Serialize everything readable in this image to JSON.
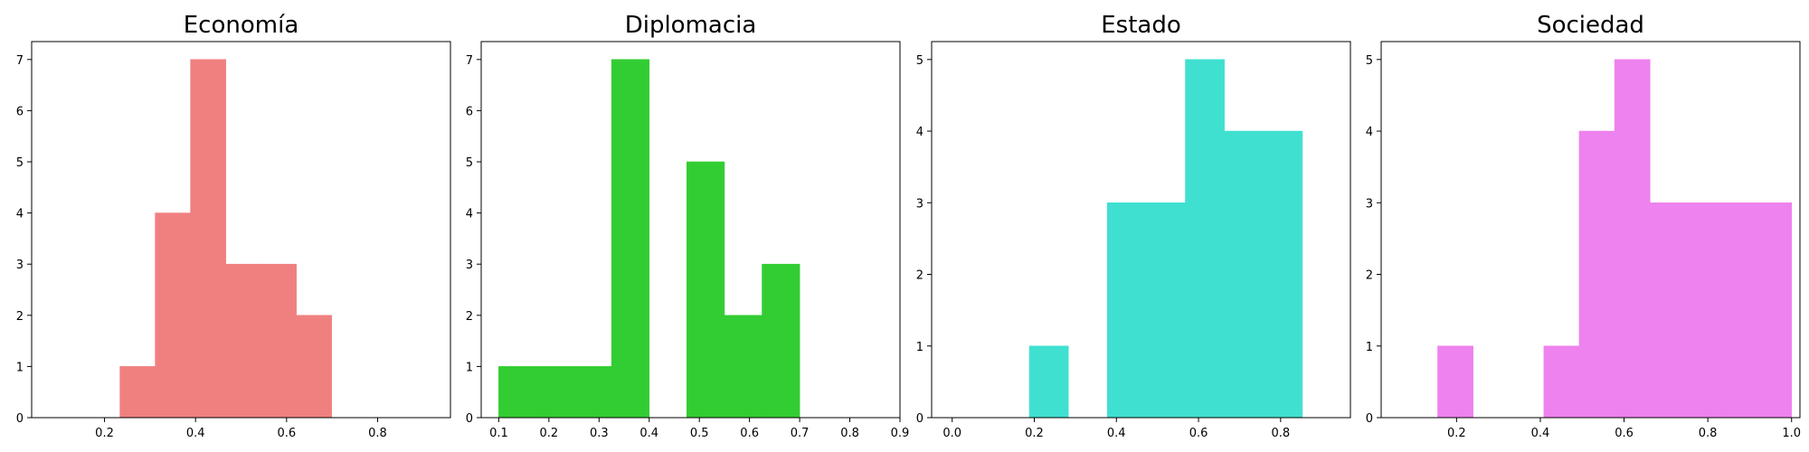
{
  "chart_data": [
    {
      "type": "bar",
      "title": "Economía",
      "color": "#F08080",
      "xlim": [
        0.04,
        0.96
      ],
      "ylim": [
        0,
        7.35
      ],
      "xticks": [
        "0.2",
        "0.4",
        "0.6",
        "0.8"
      ],
      "yticks": [
        "0",
        "1",
        "2",
        "3",
        "4",
        "5",
        "6",
        "7"
      ],
      "bins": [
        {
          "x0": 0.234,
          "x1": 0.3115,
          "count": 1
        },
        {
          "x0": 0.3115,
          "x1": 0.389,
          "count": 4
        },
        {
          "x0": 0.389,
          "x1": 0.4665,
          "count": 7
        },
        {
          "x0": 0.4665,
          "x1": 0.544,
          "count": 3
        },
        {
          "x0": 0.544,
          "x1": 0.6215,
          "count": 3
        },
        {
          "x0": 0.6215,
          "x1": 0.699,
          "count": 2
        }
      ]
    },
    {
      "type": "bar",
      "title": "Diplomacia",
      "color": "#32CD32",
      "xlim": [
        0.065,
        0.9
      ],
      "ylim": [
        0,
        7.35
      ],
      "xticks": [
        "0.1",
        "0.2",
        "0.3",
        "0.4",
        "0.5",
        "0.6",
        "0.7",
        "0.8",
        "0.9"
      ],
      "yticks": [
        "0",
        "1",
        "2",
        "3",
        "4",
        "5",
        "6",
        "7"
      ],
      "bins": [
        {
          "x0": 0.1,
          "x1": 0.175,
          "count": 1
        },
        {
          "x0": 0.175,
          "x1": 0.25,
          "count": 1
        },
        {
          "x0": 0.25,
          "x1": 0.325,
          "count": 1
        },
        {
          "x0": 0.325,
          "x1": 0.4,
          "count": 7
        },
        {
          "x0": 0.4,
          "x1": 0.475,
          "count": 0
        },
        {
          "x0": 0.475,
          "x1": 0.55,
          "count": 5
        },
        {
          "x0": 0.55,
          "x1": 0.625,
          "count": 2
        },
        {
          "x0": 0.625,
          "x1": 0.7,
          "count": 3
        }
      ]
    },
    {
      "type": "bar",
      "title": "Estado",
      "color": "#40E0D0",
      "xlim": [
        -0.05,
        0.97
      ],
      "ylim": [
        0,
        5.25
      ],
      "xticks": [
        "0.0",
        "0.2",
        "0.4",
        "0.6",
        "0.8"
      ],
      "yticks": [
        "0",
        "1",
        "2",
        "3",
        "4",
        "5"
      ],
      "bins": [
        {
          "x0": 0.188,
          "x1": 0.283,
          "count": 1
        },
        {
          "x0": 0.283,
          "x1": 0.378,
          "count": 0
        },
        {
          "x0": 0.378,
          "x1": 0.473,
          "count": 3
        },
        {
          "x0": 0.473,
          "x1": 0.568,
          "count": 3
        },
        {
          "x0": 0.568,
          "x1": 0.663,
          "count": 5
        },
        {
          "x0": 0.663,
          "x1": 0.758,
          "count": 4
        },
        {
          "x0": 0.758,
          "x1": 0.853,
          "count": 4
        }
      ]
    },
    {
      "type": "bar",
      "title": "Sociedad",
      "color": "#EE82EE",
      "xlim": [
        0.02,
        1.02
      ],
      "ylim": [
        0,
        5.25
      ],
      "xticks": [
        "0.2",
        "0.4",
        "0.6",
        "0.8",
        "1.0"
      ],
      "yticks": [
        "0",
        "1",
        "2",
        "3",
        "4",
        "5"
      ],
      "bins": [
        {
          "x0": 0.155,
          "x1": 0.2395,
          "count": 1
        },
        {
          "x0": 0.2395,
          "x1": 0.324,
          "count": 0
        },
        {
          "x0": 0.324,
          "x1": 0.4085,
          "count": 0
        },
        {
          "x0": 0.4085,
          "x1": 0.493,
          "count": 1
        },
        {
          "x0": 0.493,
          "x1": 0.5775,
          "count": 4
        },
        {
          "x0": 0.5775,
          "x1": 0.662,
          "count": 5
        },
        {
          "x0": 0.662,
          "x1": 0.7465,
          "count": 3
        },
        {
          "x0": 0.7465,
          "x1": 0.831,
          "count": 3
        },
        {
          "x0": 0.831,
          "x1": 0.9155,
          "count": 3
        },
        {
          "x0": 0.9155,
          "x1": 1.0,
          "count": 3
        }
      ]
    }
  ]
}
